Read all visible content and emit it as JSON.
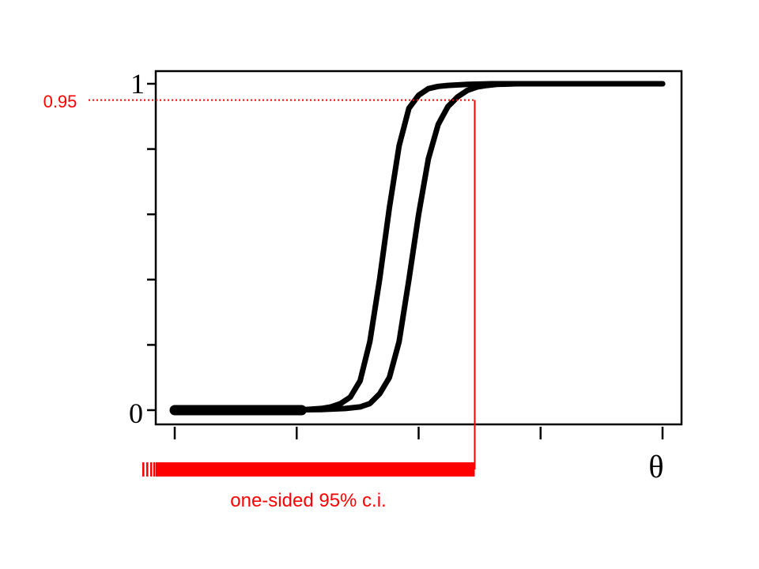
{
  "chart_data": {
    "type": "line",
    "title": "",
    "xlabel": "θ",
    "ylabel": "",
    "ylim": [
      0,
      1
    ],
    "xlim": [
      0,
      1
    ],
    "y_tick_labels": [
      "0",
      "1"
    ],
    "y_tick_values": [
      0,
      0.2,
      0.4,
      0.6,
      0.8,
      1.0
    ],
    "x_tick_values": [
      0,
      0.25,
      0.5,
      0.75,
      1.0
    ],
    "series": [
      {
        "x": [
          0,
          0.1,
          0.2,
          0.25,
          0.3,
          0.32,
          0.34,
          0.36,
          0.38,
          0.4,
          0.42,
          0.44,
          0.46,
          0.48,
          0.5,
          0.52,
          0.54,
          0.56,
          0.6,
          0.65,
          0.7,
          0.8,
          0.9,
          1.0
        ],
        "y": [
          0,
          0,
          0,
          0,
          0.005,
          0.01,
          0.02,
          0.04,
          0.09,
          0.21,
          0.4,
          0.62,
          0.81,
          0.925,
          0.965,
          0.985,
          0.992,
          0.995,
          0.998,
          1,
          1,
          1,
          1,
          1
        ]
      },
      {
        "x": [
          0,
          0.1,
          0.2,
          0.3,
          0.35,
          0.38,
          0.4,
          0.42,
          0.44,
          0.46,
          0.48,
          0.5,
          0.52,
          0.54,
          0.56,
          0.58,
          0.6,
          0.62,
          0.64,
          0.66,
          0.7,
          0.75,
          0.8,
          0.9,
          1.0
        ],
        "y": [
          0,
          0,
          0,
          0.002,
          0.005,
          0.01,
          0.02,
          0.05,
          0.1,
          0.21,
          0.4,
          0.6,
          0.77,
          0.875,
          0.93,
          0.96,
          0.98,
          0.99,
          0.995,
          0.998,
          1,
          1,
          1,
          1,
          1
        ]
      }
    ],
    "threshold": {
      "y": 0.95,
      "label": "0.95",
      "x_cross": 0.615,
      "color": "#ff0000"
    },
    "interval": {
      "from": 0,
      "to": 0.615,
      "label": "one-sided 95% c.i.",
      "color": "#ff0000"
    }
  }
}
